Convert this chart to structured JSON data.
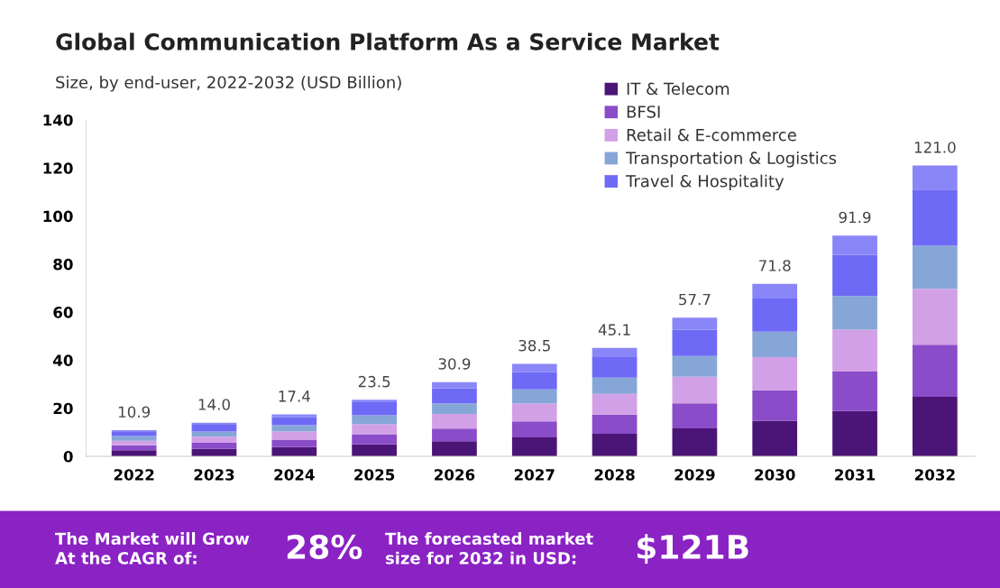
{
  "chart_data": {
    "type": "bar",
    "stacked": true,
    "title": "Global Communication Platform As a Service Market",
    "subtitle": "Size, by end-user, 2022-2032 (USD Billion)",
    "categories": [
      "2022",
      "2023",
      "2024",
      "2025",
      "2026",
      "2027",
      "2028",
      "2029",
      "2030",
      "2031",
      "2032"
    ],
    "series": [
      {
        "name": "IT & Telecom",
        "color": "#4b1577",
        "values": [
          2.5,
          3.1,
          3.8,
          5.0,
          6.3,
          7.9,
          9.4,
          11.6,
          14.8,
          18.8,
          24.8
        ]
      },
      {
        "name": "BFSI",
        "color": "#8a4cc8",
        "values": [
          2.1,
          2.5,
          3.1,
          4.2,
          5.2,
          6.6,
          7.9,
          10.4,
          12.7,
          16.5,
          21.6
        ]
      },
      {
        "name": "Retail & E-commerce",
        "color": "#d2a0e6",
        "values": [
          1.9,
          2.5,
          3.4,
          4.2,
          6.1,
          7.5,
          8.7,
          11.1,
          13.8,
          17.4,
          23.3
        ]
      },
      {
        "name": "Transportation & Logistics",
        "color": "#87a6d8",
        "values": [
          1.9,
          2.2,
          2.6,
          3.7,
          4.4,
          5.9,
          6.7,
          8.6,
          10.6,
          14.0,
          17.9
        ]
      },
      {
        "name": "Travel & Hospitality",
        "color": "#6e6af5",
        "values": [
          1.7,
          2.8,
          3.3,
          5.4,
          6.2,
          7.1,
          8.6,
          11.0,
          13.8,
          17.1,
          23.4
        ]
      },
      {
        "color": "#8a86f8",
        "values": [
          0.8,
          0.9,
          1.2,
          1.0,
          2.7,
          3.5,
          3.8,
          5.0,
          6.1,
          8.1,
          10.0
        ]
      }
    ],
    "totals": [
      "10.9",
      "14.0",
      "17.4",
      "23.5",
      "30.9",
      "38.5",
      "45.1",
      "57.7",
      "71.8",
      "91.9",
      "121.0"
    ],
    "ylim": [
      0,
      140
    ],
    "yticks": [
      0,
      20,
      40,
      60,
      80,
      100,
      120,
      140
    ],
    "grid": false,
    "legend": "top right",
    "annotations": [
      "The Market will Grow\nAt the CAGR of:",
      "28%",
      "The forecasted market\nsize for 2032 in USD:",
      "$121B"
    ]
  }
}
